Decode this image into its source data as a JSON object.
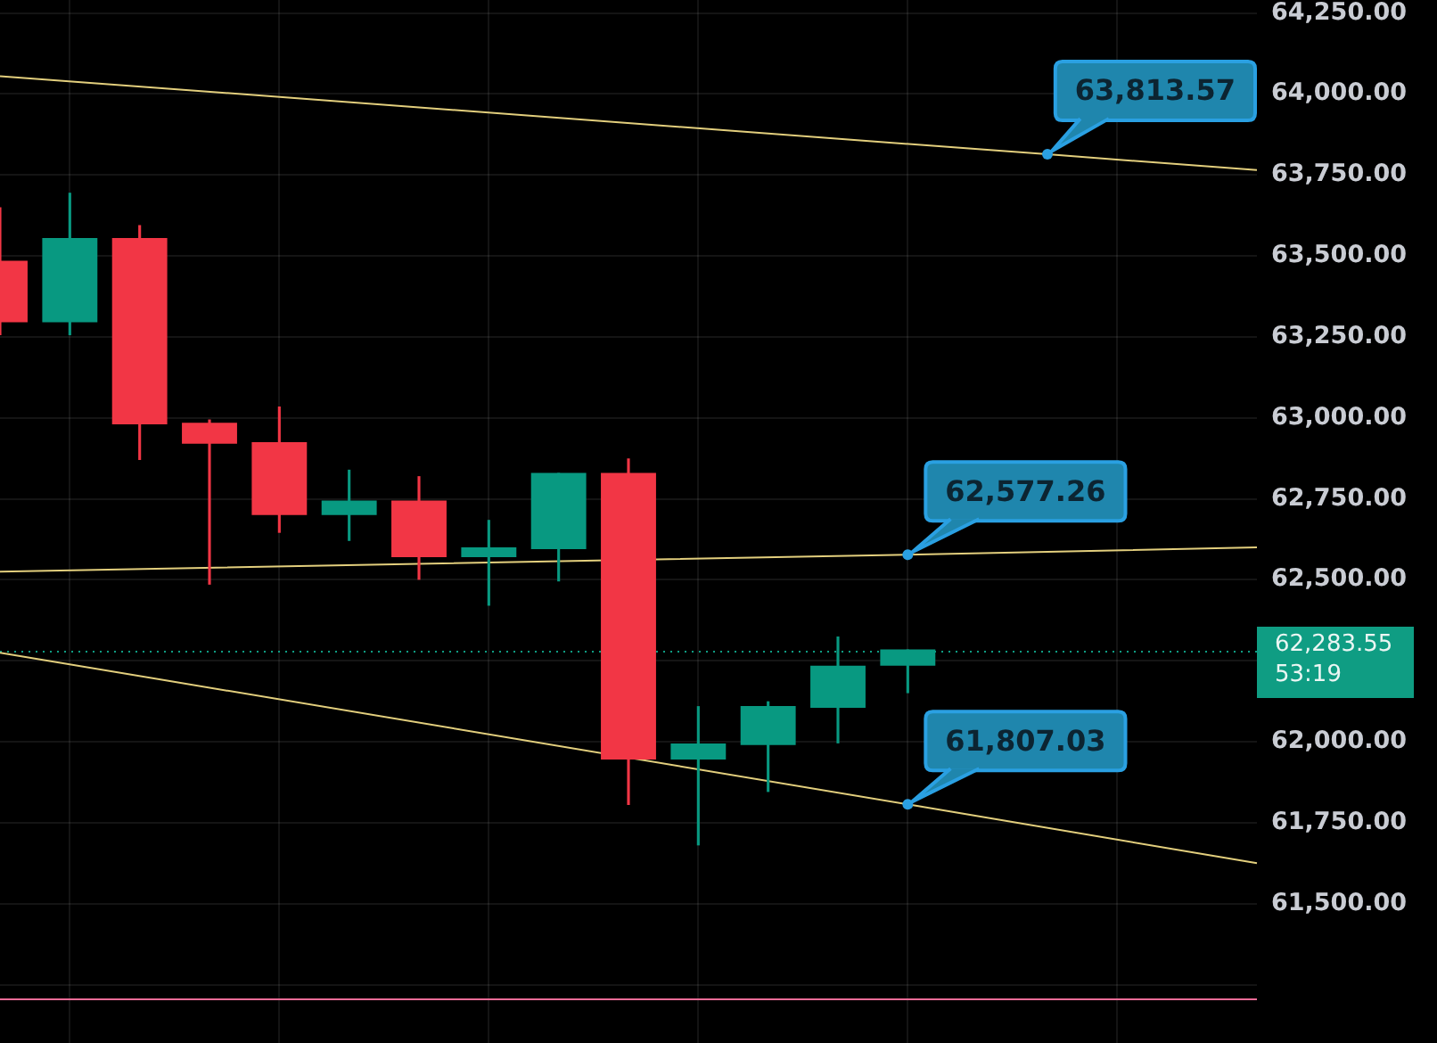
{
  "chart_data": {
    "type": "candlestick",
    "categories": [
      null,
      null,
      null,
      null,
      null,
      null,
      null,
      null,
      null,
      null,
      null,
      null,
      null,
      null,
      null,
      null,
      null,
      null,
      null
    ],
    "ohlc": [
      [
        63485,
        63650,
        63255,
        63295
      ],
      [
        63295,
        63695,
        63255,
        63555
      ],
      [
        63555,
        63595,
        62870,
        62980
      ],
      [
        62985,
        62995,
        62485,
        62920
      ],
      [
        62925,
        63035,
        62645,
        62700
      ],
      [
        62700,
        62840,
        62620,
        62745
      ],
      [
        62745,
        62820,
        62500,
        62570
      ],
      [
        62570,
        62685,
        62420,
        62600
      ],
      [
        62595,
        62830,
        62495,
        62830
      ],
      [
        62830,
        62875,
        61805,
        61945
      ],
      [
        61945,
        62110,
        61680,
        61995
      ],
      [
        61990,
        62125,
        61845,
        62110
      ],
      [
        62105,
        62325,
        61995,
        62235
      ],
      [
        62235,
        62285,
        62150,
        62285
      ],
      null,
      null,
      null,
      null,
      null
    ],
    "colors": [
      "#f23645",
      "#089981",
      "#f23645",
      "#f23645",
      "#f23645",
      "#089981",
      "#f23645",
      "#089981",
      "#089981",
      "#f23645",
      "#089981",
      "#089981",
      "#089981",
      "#089981",
      null,
      null,
      null,
      null,
      null
    ],
    "ylim": [
      61070,
      64290
    ],
    "yticks": [
      {
        "value": 61250,
        "label": null
      },
      {
        "value": 61500,
        "label": "61,500.00"
      },
      {
        "value": 61750,
        "label": "61,750.00"
      },
      {
        "value": 62000,
        "label": "62,000.00"
      },
      {
        "value": 62250,
        "label": null
      },
      {
        "value": 62500,
        "label": "62,500.00"
      },
      {
        "value": 62750,
        "label": "62,750.00"
      },
      {
        "value": 63000,
        "label": "63,000.00"
      },
      {
        "value": 63250,
        "label": "63,250.00"
      },
      {
        "value": 63500,
        "label": "63,500.00"
      },
      {
        "value": 63750,
        "label": "63,750.00"
      },
      {
        "value": 64000,
        "label": "64,000.00"
      },
      {
        "value": 64250,
        "label": "64,250.00"
      }
    ],
    "series": [
      {
        "type": "line",
        "color": "#e3cf7d",
        "values": [
          64055,
          null,
          null,
          null,
          null,
          null,
          null,
          null,
          null,
          null,
          null,
          null,
          null,
          null,
          null,
          63813.57,
          null,
          null,
          63765
        ],
        "value_labels": [
          null,
          null,
          null,
          null,
          null,
          null,
          null,
          null,
          null,
          null,
          null,
          null,
          null,
          null,
          null,
          "63,813.57",
          null,
          null,
          null
        ]
      },
      {
        "type": "line",
        "color": "#e3cf7d",
        "values": [
          62525,
          null,
          null,
          null,
          null,
          null,
          null,
          null,
          null,
          null,
          null,
          null,
          null,
          62577.26,
          null,
          null,
          null,
          null,
          62600
        ],
        "value_labels": [
          null,
          null,
          null,
          null,
          null,
          null,
          null,
          null,
          null,
          null,
          null,
          null,
          null,
          "62,577.26",
          null,
          null,
          null,
          null,
          null
        ]
      },
      {
        "type": "line",
        "color": "#e3cf7d",
        "values": [
          62275,
          null,
          null,
          null,
          null,
          null,
          null,
          null,
          null,
          null,
          null,
          null,
          null,
          61807.03,
          null,
          null,
          null,
          null,
          61625
        ],
        "value_labels": [
          null,
          null,
          null,
          null,
          null,
          null,
          null,
          null,
          null,
          null,
          null,
          null,
          null,
          "61,807.03",
          null,
          null,
          null,
          null,
          null
        ]
      }
    ],
    "ref_lines": [
      {
        "axis": "y",
        "value": 62283.55,
        "label": "62,283.55",
        "color": "#0f9d83",
        "line_style": "dotted"
      },
      {
        "axis": "y",
        "value": 61205,
        "color": "#f06c97",
        "line_style": "solid"
      }
    ],
    "annotations": [
      "53:19"
    ],
    "grid": true,
    "tick_labels": "y"
  }
}
